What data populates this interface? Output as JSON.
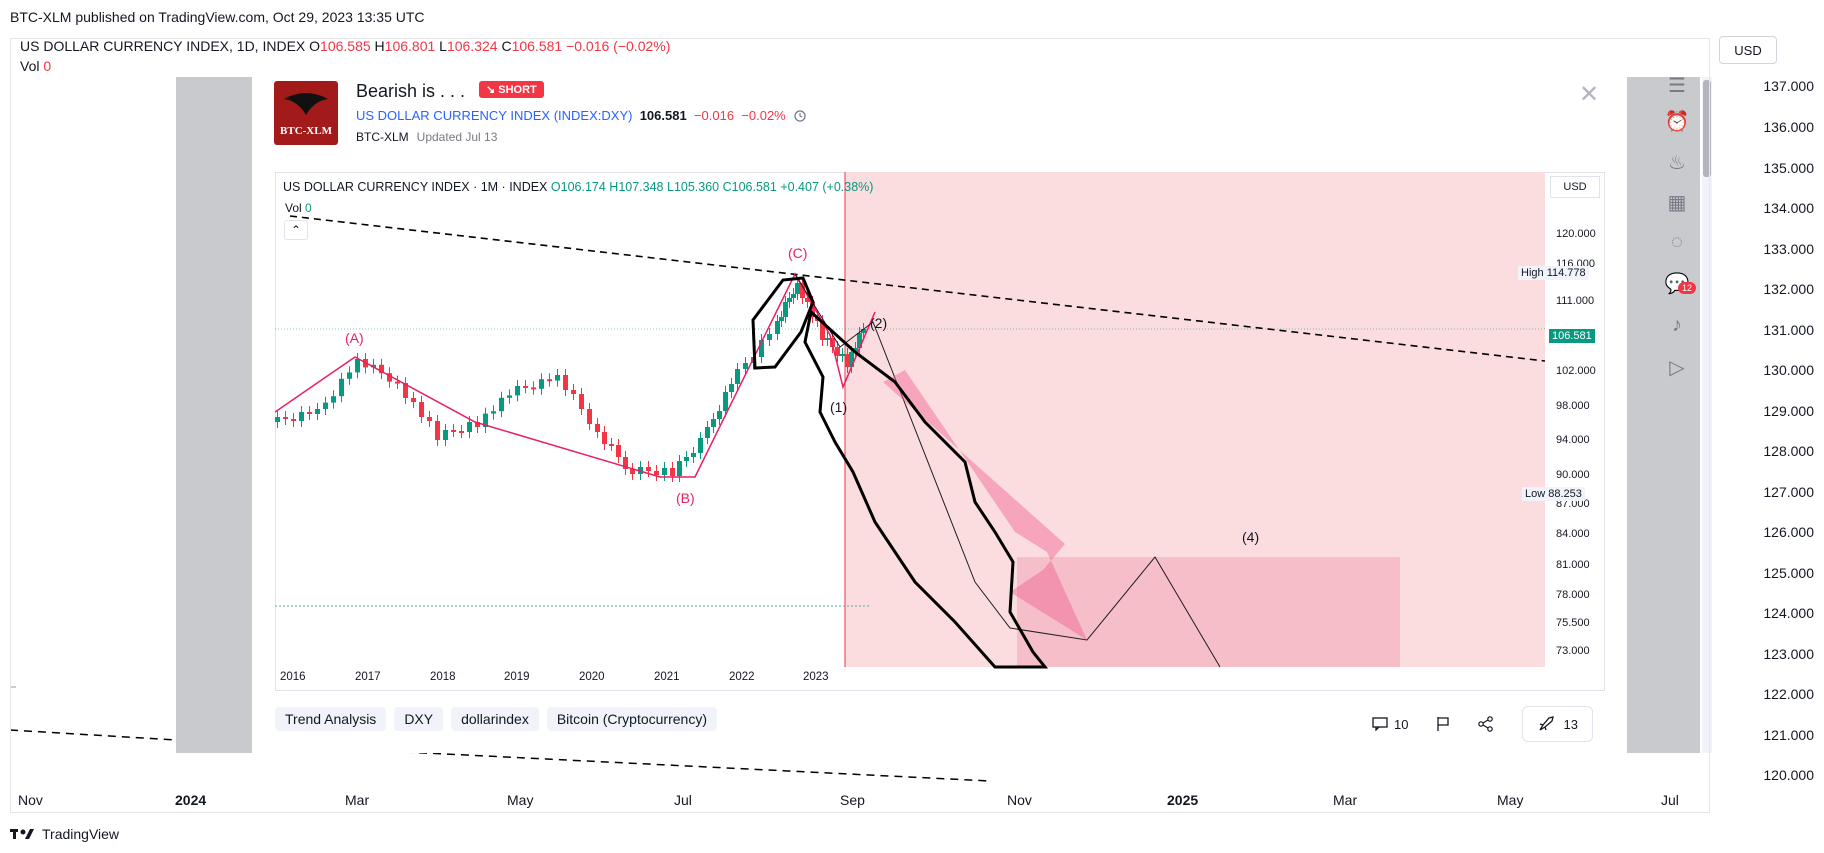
{
  "publish_line": "BTC-XLM published on TradingView.com, Oct 29, 2023 13:35 UTC",
  "main_legend": {
    "symbol": "US DOLLAR CURRENCY INDEX, 1D, INDEX",
    "o_label": "O",
    "o": "106.585",
    "h_label": "H",
    "h": "106.801",
    "l_label": "L",
    "l": "106.324",
    "c_label": "C",
    "c": "106.581",
    "change": "−0.016 (−0.02%)",
    "vol_label": "Vol",
    "vol": "0"
  },
  "currency_button": "USD",
  "price_axis": [
    "137.000",
    "136.000",
    "135.000",
    "134.000",
    "133.000",
    "132.000",
    "131.000",
    "130.000",
    "129.000",
    "128.000",
    "127.000",
    "126.000",
    "125.000",
    "124.000",
    "123.000",
    "122.000",
    "121.000",
    "120.000"
  ],
  "time_axis": [
    "Nov",
    "2024",
    "Mar",
    "May",
    "Jul",
    "Sep",
    "Nov",
    "2025",
    "Mar",
    "May",
    "Jul"
  ],
  "footer_brand": "TradingView",
  "idea": {
    "title": "Bearish is . . .",
    "badge": "↘ SHORT",
    "avatar_text": "BTC-XLM",
    "symbol_name": "US DOLLAR CURRENCY INDEX",
    "symbol_ticker": "(INDEX:DXY)",
    "price": "106.581",
    "change": "−0.016",
    "change_pct": "−0.02%",
    "author": "BTC-XLM",
    "updated": "Updated Jul 13",
    "inner_legend": {
      "symbol": "US DOLLAR CURRENCY INDEX · 1M · INDEX",
      "o": "O106.174",
      "h": "H107.348",
      "l": "L105.360",
      "c": "C106.581",
      "change": "+0.407 (+0.38%)",
      "vol_label": "Vol",
      "vol": "0"
    },
    "inner_currency": "USD",
    "inner_price_axis": [
      "120.000",
      "116.000",
      "111.000",
      "106.581",
      "102.000",
      "98.000",
      "94.000",
      "90.000",
      "87.000",
      "84.000",
      "81.000",
      "78.000",
      "75.500",
      "73.000"
    ],
    "high_label": "High",
    "high_value": "114.778",
    "low_label": "Low",
    "low_value": "88.253",
    "inner_time_axis": [
      "2016",
      "2017",
      "2018",
      "2019",
      "2020",
      "2021",
      "2022",
      "2023"
    ],
    "wave_labels": [
      "(A)",
      "(B)",
      "(C)",
      "(1)",
      "(2)",
      "(4)"
    ],
    "tags": [
      "Trend Analysis",
      "DXY",
      "dollarindex",
      "Bitcoin (Cryptocurrency)"
    ],
    "comments": "10",
    "boosts": "13"
  },
  "colors": {
    "up": "#089981",
    "down": "#f23645",
    "wave": "#e91e63",
    "shade": "#f8c9cf"
  }
}
